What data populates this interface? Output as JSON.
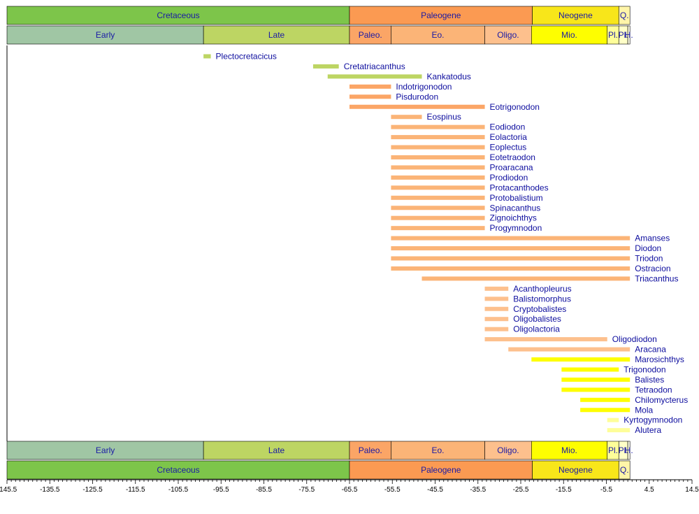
{
  "chart_data": {
    "type": "timeline-range",
    "title": "",
    "xlabel": "",
    "ylabel": "",
    "xlim": [
      -145.5,
      14.5
    ],
    "x_ticks": [
      -145.5,
      -135.5,
      -125.5,
      -115.5,
      -105.5,
      -95.5,
      -85.5,
      -75.5,
      -65.5,
      -55.5,
      -45.5,
      -35.5,
      -25.5,
      -15.5,
      -5.5,
      4.5,
      14.5
    ],
    "x_tick_labels": [
      "-145.5",
      "-135.5",
      "-125.5",
      "-115.5",
      "-105.5",
      "-95.5",
      "-85.5",
      "-75.5",
      "-65.5",
      "-55.5",
      "-45.5",
      "-35.5",
      "-25.5",
      "-15.5",
      "-5.5",
      "4.5",
      "14.5"
    ],
    "periods": [
      {
        "label": "Cretaceous",
        "start": -145.5,
        "end": -65.5,
        "color": "#7dc54a"
      },
      {
        "label": "Paleogene",
        "start": -65.5,
        "end": -22.8,
        "color": "#fb9a52"
      },
      {
        "label": "Neogene",
        "start": -22.8,
        "end": -2.6,
        "color": "#f8e61a"
      },
      {
        "label": "Q.",
        "start": -2.6,
        "end": 0,
        "color": "#fff5a8"
      }
    ],
    "epochs": [
      {
        "label": "Early",
        "start": -145.5,
        "end": -99.6,
        "color": "#a0c6a4"
      },
      {
        "label": "Late",
        "start": -99.6,
        "end": -65.5,
        "color": "#bdd563"
      },
      {
        "label": "Paleo.",
        "start": -65.5,
        "end": -55.8,
        "color": "#fba566"
      },
      {
        "label": "Eo.",
        "start": -55.8,
        "end": -33.9,
        "color": "#fbb477"
      },
      {
        "label": "Oligo.",
        "start": -33.9,
        "end": -23.0,
        "color": "#fdc08d"
      },
      {
        "label": "Mio.",
        "start": -23.0,
        "end": -5.3,
        "color": "#fefe00"
      },
      {
        "label": "Pl.",
        "start": -5.3,
        "end": -2.6,
        "color": "#fefe99"
      },
      {
        "label": "Pl.",
        "start": -2.6,
        "end": -0.5,
        "color": "#ffffc8"
      },
      {
        "label": "H.",
        "start": -0.5,
        "end": 0,
        "color": "#ffffe6"
      }
    ],
    "series": [
      {
        "name": "Plectocretacicus",
        "start": -99.6,
        "end": -97.9,
        "color": "#bdd563"
      },
      {
        "name": "Cretatriacanthus",
        "start": -74.0,
        "end": -68.0,
        "color": "#bdd563"
      },
      {
        "name": "Kankatodus",
        "start": -70.6,
        "end": -48.6,
        "color": "#bdd563"
      },
      {
        "name": "Indotrigonodon",
        "start": -65.5,
        "end": -55.8,
        "color": "#fba566"
      },
      {
        "name": "Pisdurodon",
        "start": -65.5,
        "end": -55.8,
        "color": "#fba566"
      },
      {
        "name": "Eotrigonodon",
        "start": -65.5,
        "end": -33.9,
        "color": "#fba566"
      },
      {
        "name": "Eospinus",
        "start": -55.8,
        "end": -48.6,
        "color": "#fbb477"
      },
      {
        "name": "Eodiodon",
        "start": -55.8,
        "end": -33.9,
        "color": "#fbb477"
      },
      {
        "name": "Eolactoria",
        "start": -55.8,
        "end": -33.9,
        "color": "#fbb477"
      },
      {
        "name": "Eoplectus",
        "start": -55.8,
        "end": -33.9,
        "color": "#fbb477"
      },
      {
        "name": "Eotetraodon",
        "start": -55.8,
        "end": -33.9,
        "color": "#fbb477"
      },
      {
        "name": "Proaracana",
        "start": -55.8,
        "end": -33.9,
        "color": "#fbb477"
      },
      {
        "name": "Prodiodon",
        "start": -55.8,
        "end": -33.9,
        "color": "#fbb477"
      },
      {
        "name": "Protacanthodes",
        "start": -55.8,
        "end": -33.9,
        "color": "#fbb477"
      },
      {
        "name": "Protobalistium",
        "start": -55.8,
        "end": -33.9,
        "color": "#fbb477"
      },
      {
        "name": "Spinacanthus",
        "start": -55.8,
        "end": -33.9,
        "color": "#fbb477"
      },
      {
        "name": "Zignoichthys",
        "start": -55.8,
        "end": -33.9,
        "color": "#fbb477"
      },
      {
        "name": "Progymnodon",
        "start": -55.8,
        "end": -33.9,
        "color": "#fbb477"
      },
      {
        "name": "Amanses",
        "start": -55.8,
        "end": 0,
        "color": "#fbb477"
      },
      {
        "name": "Diodon",
        "start": -55.8,
        "end": 0,
        "color": "#fbb477"
      },
      {
        "name": "Triodon",
        "start": -55.8,
        "end": 0,
        "color": "#fbb477"
      },
      {
        "name": "Ostracion",
        "start": -55.8,
        "end": 0,
        "color": "#fbb477"
      },
      {
        "name": "Triacanthus",
        "start": -48.6,
        "end": 0,
        "color": "#fbb477"
      },
      {
        "name": "Acanthopleurus",
        "start": -33.9,
        "end": -28.4,
        "color": "#fdc08d"
      },
      {
        "name": "Balistomorphus",
        "start": -33.9,
        "end": -28.4,
        "color": "#fdc08d"
      },
      {
        "name": "Cryptobalistes",
        "start": -33.9,
        "end": -28.4,
        "color": "#fdc08d"
      },
      {
        "name": "Oligobalistes",
        "start": -33.9,
        "end": -28.4,
        "color": "#fdc08d"
      },
      {
        "name": "Oligolactoria",
        "start": -33.9,
        "end": -28.4,
        "color": "#fdc08d"
      },
      {
        "name": "Oligodiodon",
        "start": -33.9,
        "end": -5.3,
        "color": "#fdc08d"
      },
      {
        "name": "Aracana",
        "start": -28.4,
        "end": 0,
        "color": "#fdc08d"
      },
      {
        "name": "Marosichthys",
        "start": -23.0,
        "end": 0,
        "color": "#fefe00"
      },
      {
        "name": "Trigonodon",
        "start": -15.97,
        "end": -2.6,
        "color": "#fefe00"
      },
      {
        "name": "Balistes",
        "start": -15.97,
        "end": 0,
        "color": "#fefe00"
      },
      {
        "name": "Tetraodon",
        "start": -15.97,
        "end": 0,
        "color": "#fefe00"
      },
      {
        "name": "Chilomycterus",
        "start": -11.6,
        "end": 0,
        "color": "#fefe00"
      },
      {
        "name": "Mola",
        "start": -11.6,
        "end": 0,
        "color": "#fefe00"
      },
      {
        "name": "Kyrtogymnodon",
        "start": -5.3,
        "end": -2.6,
        "color": "#fefe99"
      },
      {
        "name": "Alutera",
        "start": -5.3,
        "end": 0,
        "color": "#fefe99"
      }
    ]
  }
}
